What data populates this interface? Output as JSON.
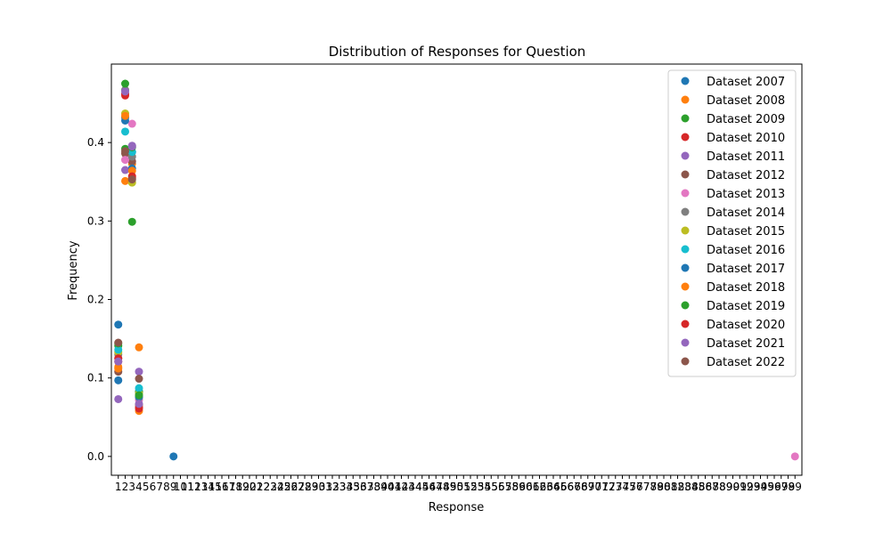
{
  "chart_data": {
    "type": "scatter",
    "title": "Distribution of Responses for Question",
    "xlabel": "Response",
    "ylabel": "Frequency",
    "xlim": [
      0,
      100
    ],
    "ylim": [
      -0.024,
      0.5
    ],
    "x_ticks": [
      1,
      2,
      3,
      4,
      5,
      6,
      7,
      8,
      9,
      10,
      11,
      12,
      13,
      14,
      15,
      16,
      17,
      18,
      19,
      20,
      21,
      22,
      23,
      24,
      25,
      26,
      27,
      28,
      29,
      30,
      31,
      32,
      33,
      34,
      35,
      36,
      37,
      38,
      39,
      40,
      41,
      42,
      43,
      44,
      45,
      46,
      47,
      48,
      49,
      50,
      51,
      52,
      53,
      54,
      55,
      56,
      57,
      58,
      59,
      60,
      61,
      62,
      63,
      64,
      65,
      66,
      67,
      68,
      69,
      70,
      71,
      72,
      73,
      74,
      75,
      76,
      77,
      78,
      79,
      80,
      81,
      82,
      83,
      84,
      85,
      86,
      87,
      88,
      89,
      90,
      91,
      92,
      93,
      94,
      95,
      96,
      97,
      98,
      99
    ],
    "y_ticks": [
      "0.0",
      "0.1",
      "0.2",
      "0.3",
      "0.4"
    ],
    "legend_position": "top-right",
    "grid": false,
    "series": [
      {
        "name": "Dataset 2007",
        "color": "#1f77b4",
        "points": [
          [
            1,
            0.097
          ],
          [
            2,
            0.432
          ],
          [
            3,
            0.388
          ],
          [
            4,
            0.083
          ],
          [
            9,
            0.0
          ]
        ]
      },
      {
        "name": "Dataset 2008",
        "color": "#ff7f0e",
        "points": [
          [
            1,
            0.114
          ],
          [
            2,
            0.351
          ],
          [
            3,
            0.373
          ],
          [
            4,
            0.139
          ]
        ]
      },
      {
        "name": "Dataset 2009",
        "color": "#2ca02c",
        "points": [
          [
            1,
            0.141
          ],
          [
            2,
            0.392
          ],
          [
            3,
            0.299
          ],
          [
            4,
            0.082
          ]
        ]
      },
      {
        "name": "Dataset 2010",
        "color": "#d62728",
        "points": [
          [
            1,
            0.121
          ],
          [
            2,
            0.46
          ],
          [
            3,
            0.355
          ],
          [
            4,
            0.063
          ]
        ]
      },
      {
        "name": "Dataset 2011",
        "color": "#9467bd",
        "points": [
          [
            1,
            0.073
          ],
          [
            2,
            0.365
          ],
          [
            3,
            0.396
          ],
          [
            4,
            0.108
          ]
        ]
      },
      {
        "name": "Dataset 2012",
        "color": "#8c564b",
        "points": [
          [
            1,
            0.108
          ],
          [
            2,
            0.386
          ],
          [
            3,
            0.376
          ],
          [
            4,
            0.066
          ]
        ]
      },
      {
        "name": "Dataset 2013",
        "color": "#e377c2",
        "points": [
          [
            1,
            0.125
          ],
          [
            2,
            0.378
          ],
          [
            3,
            0.424
          ],
          [
            4,
            0.072
          ],
          [
            99,
            0.0
          ]
        ]
      },
      {
        "name": "Dataset 2014",
        "color": "#7f7f7f",
        "points": [
          [
            1,
            0.13
          ],
          [
            2,
            0.467
          ],
          [
            3,
            0.382
          ],
          [
            4,
            0.075
          ]
        ]
      },
      {
        "name": "Dataset 2015",
        "color": "#bcbd22",
        "points": [
          [
            1,
            0.133
          ],
          [
            2,
            0.437
          ],
          [
            3,
            0.349
          ],
          [
            4,
            0.08
          ]
        ]
      },
      {
        "name": "Dataset 2016",
        "color": "#17becf",
        "points": [
          [
            1,
            0.136
          ],
          [
            2,
            0.414
          ],
          [
            3,
            0.388
          ],
          [
            4,
            0.087
          ]
        ]
      },
      {
        "name": "Dataset 2017",
        "color": "#1f77b4",
        "points": [
          [
            1,
            0.168
          ],
          [
            2,
            0.428
          ],
          [
            3,
            0.367
          ],
          [
            4,
            0.076
          ]
        ]
      },
      {
        "name": "Dataset 2018",
        "color": "#ff7f0e",
        "points": [
          [
            1,
            0.112
          ],
          [
            2,
            0.434
          ],
          [
            3,
            0.364
          ],
          [
            4,
            0.058
          ]
        ]
      },
      {
        "name": "Dataset 2019",
        "color": "#2ca02c",
        "points": [
          [
            1,
            0.144
          ],
          [
            2,
            0.475
          ],
          [
            3,
            0.394
          ],
          [
            4,
            0.078
          ]
        ]
      },
      {
        "name": "Dataset 2020",
        "color": "#d62728",
        "points": [
          [
            1,
            0.125
          ],
          [
            2,
            0.462
          ],
          [
            3,
            0.357
          ],
          [
            4,
            0.061
          ]
        ]
      },
      {
        "name": "Dataset 2021",
        "color": "#9467bd",
        "points": [
          [
            1,
            0.121
          ],
          [
            2,
            0.465
          ],
          [
            3,
            0.395
          ],
          [
            4,
            0.067
          ]
        ]
      },
      {
        "name": "Dataset 2022",
        "color": "#8c564b",
        "points": [
          [
            1,
            0.145
          ],
          [
            2,
            0.389
          ],
          [
            3,
            0.353
          ],
          [
            4,
            0.099
          ]
        ]
      }
    ]
  }
}
